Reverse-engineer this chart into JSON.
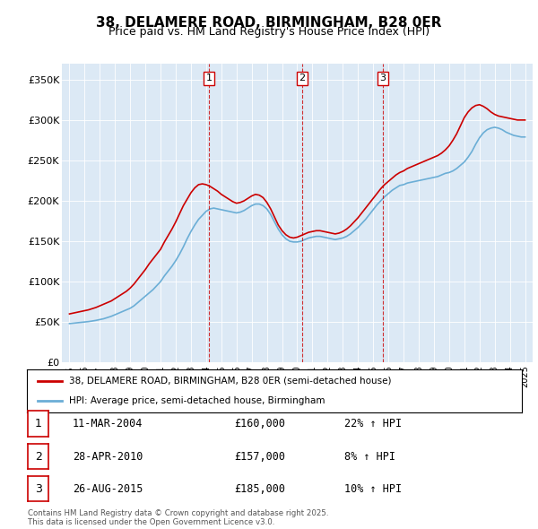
{
  "title": "38, DELAMERE ROAD, BIRMINGHAM, B28 0ER",
  "subtitle": "Price paid vs. HM Land Registry's House Price Index (HPI)",
  "bg_color": "#dce9f5",
  "plot_bg_color": "#dce9f5",
  "red_line_color": "#cc0000",
  "blue_line_color": "#6baed6",
  "ylim": [
    0,
    370000
  ],
  "yticks": [
    0,
    50000,
    100000,
    150000,
    200000,
    250000,
    300000,
    350000
  ],
  "ytick_labels": [
    "£0",
    "£50K",
    "£100K",
    "£150K",
    "£200K",
    "£250K",
    "£300K",
    "£350K"
  ],
  "xlim_start": 1994.5,
  "xlim_end": 2025.5,
  "sale_dates": [
    2004.19,
    2010.32,
    2015.65
  ],
  "sale_prices": [
    160000,
    157000,
    185000
  ],
  "sale_labels": [
    "1",
    "2",
    "3"
  ],
  "sale_date_strs": [
    "11-MAR-2004",
    "28-APR-2010",
    "26-AUG-2015"
  ],
  "sale_pct": [
    "22%",
    "8%",
    "10%"
  ],
  "legend_red_label": "38, DELAMERE ROAD, BIRMINGHAM, B28 0ER (semi-detached house)",
  "legend_blue_label": "HPI: Average price, semi-detached house, Birmingham",
  "footer": "Contains HM Land Registry data © Crown copyright and database right 2025.\nThis data is licensed under the Open Government Licence v3.0.",
  "hpi_years": [
    1995.0,
    1995.25,
    1995.5,
    1995.75,
    1996.0,
    1996.25,
    1996.5,
    1996.75,
    1997.0,
    1997.25,
    1997.5,
    1997.75,
    1998.0,
    1998.25,
    1998.5,
    1998.75,
    1999.0,
    1999.25,
    1999.5,
    1999.75,
    2000.0,
    2000.25,
    2000.5,
    2000.75,
    2001.0,
    2001.25,
    2001.5,
    2001.75,
    2002.0,
    2002.25,
    2002.5,
    2002.75,
    2003.0,
    2003.25,
    2003.5,
    2003.75,
    2004.0,
    2004.25,
    2004.5,
    2004.75,
    2005.0,
    2005.25,
    2005.5,
    2005.75,
    2006.0,
    2006.25,
    2006.5,
    2006.75,
    2007.0,
    2007.25,
    2007.5,
    2007.75,
    2008.0,
    2008.25,
    2008.5,
    2008.75,
    2009.0,
    2009.25,
    2009.5,
    2009.75,
    2010.0,
    2010.25,
    2010.5,
    2010.75,
    2011.0,
    2011.25,
    2011.5,
    2011.75,
    2012.0,
    2012.25,
    2012.5,
    2012.75,
    2013.0,
    2013.25,
    2013.5,
    2013.75,
    2014.0,
    2014.25,
    2014.5,
    2014.75,
    2015.0,
    2015.25,
    2015.5,
    2015.75,
    2016.0,
    2016.25,
    2016.5,
    2016.75,
    2017.0,
    2017.25,
    2017.5,
    2017.75,
    2018.0,
    2018.25,
    2018.5,
    2018.75,
    2019.0,
    2019.25,
    2019.5,
    2019.75,
    2020.0,
    2020.25,
    2020.5,
    2020.75,
    2021.0,
    2021.25,
    2021.5,
    2021.75,
    2022.0,
    2022.25,
    2022.5,
    2022.75,
    2023.0,
    2023.25,
    2023.5,
    2023.75,
    2024.0,
    2024.25,
    2024.5,
    2024.75,
    2025.0
  ],
  "hpi_values": [
    48000,
    48500,
    49000,
    49500,
    50000,
    50500,
    51200,
    52000,
    53000,
    54000,
    55500,
    57000,
    59000,
    61000,
    63000,
    65000,
    67000,
    70000,
    74000,
    78000,
    82000,
    86000,
    90000,
    95000,
    100000,
    107000,
    113000,
    119000,
    126000,
    134000,
    143000,
    153000,
    162000,
    170000,
    177000,
    182000,
    187000,
    190000,
    191000,
    190000,
    189000,
    188000,
    187000,
    186000,
    185000,
    186000,
    188000,
    191000,
    194000,
    196000,
    196000,
    194000,
    190000,
    183000,
    174000,
    165000,
    158000,
    153000,
    150000,
    149000,
    149000,
    150000,
    152000,
    154000,
    155000,
    156000,
    156000,
    155000,
    154000,
    153000,
    152000,
    153000,
    154000,
    156000,
    159000,
    163000,
    167000,
    172000,
    177000,
    183000,
    189000,
    195000,
    200000,
    205000,
    209000,
    213000,
    216000,
    219000,
    220000,
    222000,
    223000,
    224000,
    225000,
    226000,
    227000,
    228000,
    229000,
    230000,
    232000,
    234000,
    235000,
    237000,
    240000,
    244000,
    248000,
    254000,
    261000,
    270000,
    278000,
    284000,
    288000,
    290000,
    291000,
    290000,
    288000,
    285000,
    283000,
    281000,
    280000,
    279000,
    279000
  ],
  "red_years": [
    1995.0,
    1995.25,
    1995.5,
    1995.75,
    1996.0,
    1996.25,
    1996.5,
    1996.75,
    1997.0,
    1997.25,
    1997.5,
    1997.75,
    1998.0,
    1998.25,
    1998.5,
    1998.75,
    1999.0,
    1999.25,
    1999.5,
    1999.75,
    2000.0,
    2000.25,
    2000.5,
    2000.75,
    2001.0,
    2001.25,
    2001.5,
    2001.75,
    2002.0,
    2002.25,
    2002.5,
    2002.75,
    2003.0,
    2003.25,
    2003.5,
    2003.75,
    2004.0,
    2004.25,
    2004.5,
    2004.75,
    2005.0,
    2005.25,
    2005.5,
    2005.75,
    2006.0,
    2006.25,
    2006.5,
    2006.75,
    2007.0,
    2007.25,
    2007.5,
    2007.75,
    2008.0,
    2008.25,
    2008.5,
    2008.75,
    2009.0,
    2009.25,
    2009.5,
    2009.75,
    2010.0,
    2010.25,
    2010.5,
    2010.75,
    2011.0,
    2011.25,
    2011.5,
    2011.75,
    2012.0,
    2012.25,
    2012.5,
    2012.75,
    2013.0,
    2013.25,
    2013.5,
    2013.75,
    2014.0,
    2014.25,
    2014.5,
    2014.75,
    2015.0,
    2015.25,
    2015.5,
    2015.75,
    2016.0,
    2016.25,
    2016.5,
    2016.75,
    2017.0,
    2017.25,
    2017.5,
    2017.75,
    2018.0,
    2018.25,
    2018.5,
    2018.75,
    2019.0,
    2019.25,
    2019.5,
    2019.75,
    2020.0,
    2020.25,
    2020.5,
    2020.75,
    2021.0,
    2021.25,
    2021.5,
    2021.75,
    2022.0,
    2022.25,
    2022.5,
    2022.75,
    2023.0,
    2023.25,
    2023.5,
    2023.75,
    2024.0,
    2024.25,
    2024.5,
    2024.75,
    2025.0
  ],
  "red_values": [
    60000,
    61000,
    62000,
    63000,
    64000,
    65000,
    66500,
    68000,
    70000,
    72000,
    74000,
    76000,
    79000,
    82000,
    85000,
    88000,
    92000,
    97000,
    103000,
    109000,
    115000,
    122000,
    128000,
    134000,
    140000,
    149000,
    157000,
    165000,
    174000,
    184000,
    194000,
    202000,
    210000,
    216000,
    220000,
    221000,
    220000,
    218000,
    215000,
    212000,
    208000,
    205000,
    202000,
    199000,
    197000,
    198000,
    200000,
    203000,
    206000,
    208000,
    207000,
    204000,
    198000,
    190000,
    180000,
    170000,
    163000,
    158000,
    155000,
    154000,
    155000,
    157000,
    159000,
    161000,
    162000,
    163000,
    163000,
    162000,
    161000,
    160000,
    159000,
    160000,
    162000,
    165000,
    169000,
    174000,
    179000,
    185000,
    191000,
    197000,
    203000,
    209000,
    215000,
    220000,
    224000,
    228000,
    232000,
    235000,
    237000,
    240000,
    242000,
    244000,
    246000,
    248000,
    250000,
    252000,
    254000,
    256000,
    259000,
    263000,
    268000,
    275000,
    283000,
    293000,
    303000,
    310000,
    315000,
    318000,
    319000,
    317000,
    314000,
    310000,
    307000,
    305000,
    304000,
    303000,
    302000,
    301000,
    300000,
    300000,
    300000
  ]
}
